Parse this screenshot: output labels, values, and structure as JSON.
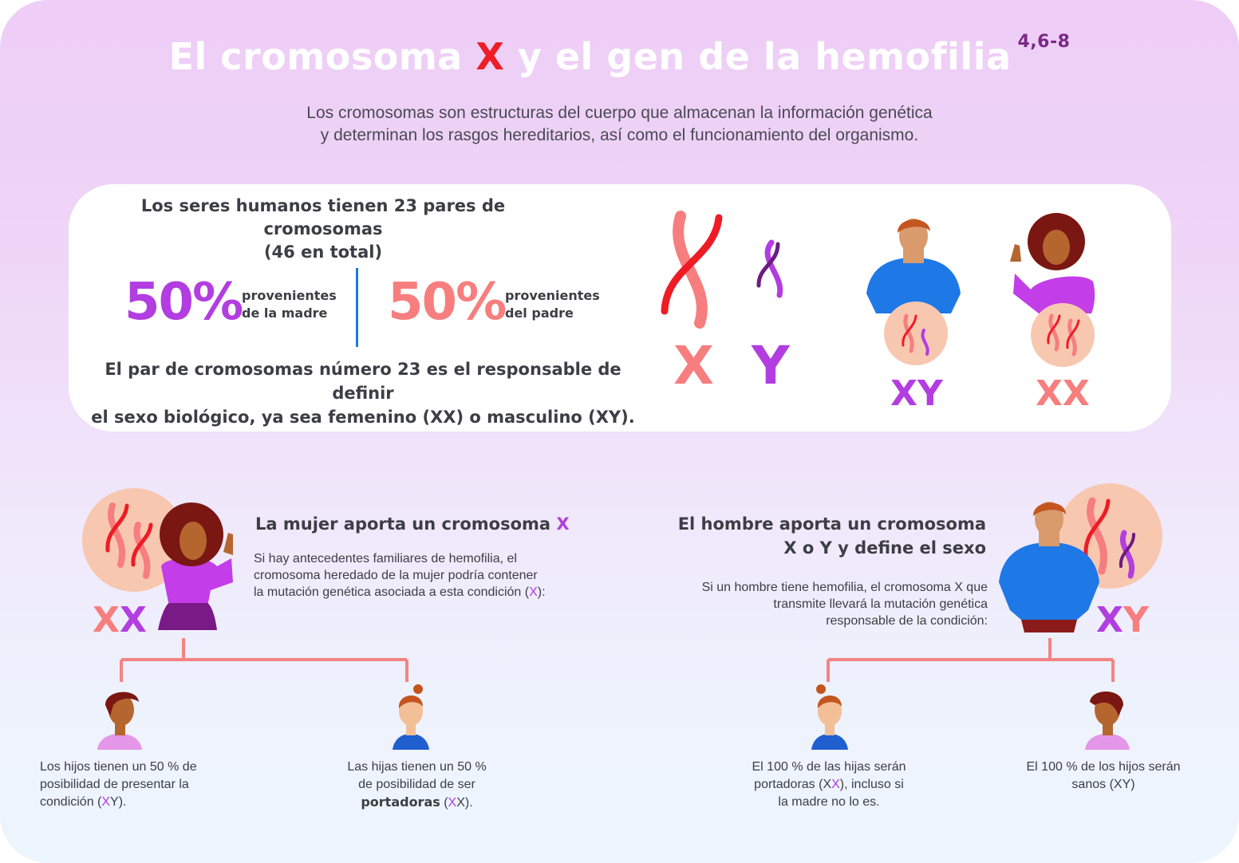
{
  "header": {
    "title_pre": "El cromosoma ",
    "title_x": "X",
    "title_post": " y el gen de la hemofilia",
    "title_ref": "4,6-8",
    "intro_line1": "Los cromosomas son estructuras del cuerpo que almacenan la información genética",
    "intro_line2": "y determinan los rasgos hereditarios, así como el funcionamiento del organismo."
  },
  "card": {
    "heading_line1": "Los seres humanos tienen 23 pares de cromosomas",
    "heading_line2": "(46 en total)",
    "mother_percent": "50%",
    "mother_label_1": "provenientes",
    "mother_label_2": "de la madre",
    "father_percent": "50%",
    "father_label_1": "provenientes",
    "father_label_2": "del padre",
    "footer_line1": "El par de cromosomas número 23 es el responsable de definir",
    "footer_line2": "el sexo biológico, ya sea femenino (XX) o masculino (XY).",
    "chrom_x_label": "X",
    "chrom_y_label": "Y",
    "male_label": "XY",
    "female_label": "XX"
  },
  "woman_section": {
    "heading_pre": "La mujer aporta un cromosoma ",
    "heading_x": "X",
    "body_1": "Si hay antecedentes familiares de hemofilia, el",
    "body_2": "cromosoma heredado de la mujer podría contener",
    "body_3_pre": "la mutación genética asociada a esta condición (",
    "body_3_x": "X",
    "body_3_post": "):",
    "label_x1": "X",
    "label_x2": "X",
    "son_1": "Los hijos tienen un 50 % de",
    "son_2": "posibilidad de presentar la",
    "son_3_pre": "condición (",
    "son_3_x": "X",
    "son_3_post": "Y).",
    "daughter_1": "Las hijas tienen un 50 %",
    "daughter_2": "de posibilidad de ser",
    "daughter_3_bold": "portadoras",
    "daughter_3_mid": " (",
    "daughter_3_x": "X",
    "daughter_3_post": "X)."
  },
  "man_section": {
    "heading_line1": "El hombre aporta un cromosoma",
    "heading_line2": "X o Y y define el sexo",
    "body_1": "Si un hombre tiene hemofilia, el cromosoma X que",
    "body_2": "transmite llevará la mutación genética",
    "body_3": "responsable de la condición:",
    "label_x": "X",
    "label_y": "Y",
    "daughter_1": "El 100 % de las hijas serán",
    "daughter_2_pre": "portadoras (X",
    "daughter_2_x": "X",
    "daughter_2_post": "), incluso si",
    "daughter_3": "la madre no lo es.",
    "son_1": "El 100 % de los hijos serán",
    "son_2": "sanos (XY)"
  },
  "colors": {
    "purple": "#b23de0",
    "salmon": "#f77e7e",
    "red": "#ee1c25",
    "blue": "#1e78e6",
    "connector": "#f58383"
  }
}
